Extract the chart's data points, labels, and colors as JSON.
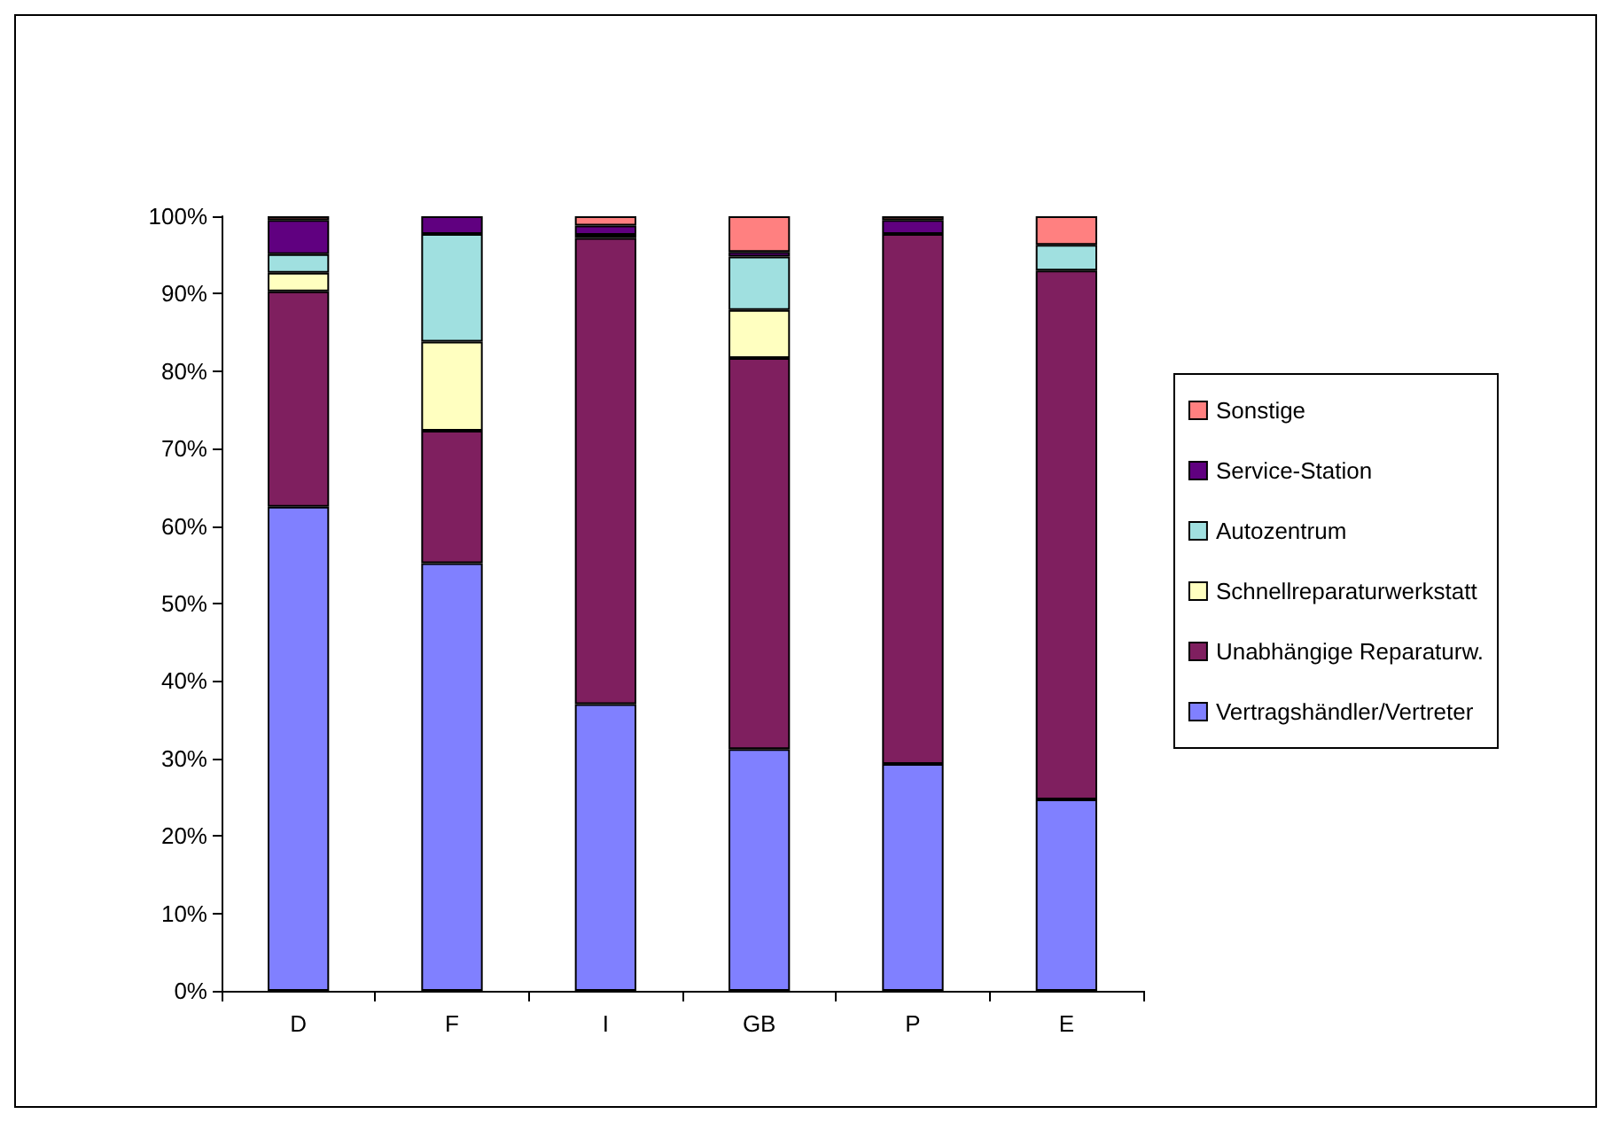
{
  "chart_data": {
    "type": "bar",
    "stacked": true,
    "categories": [
      "D",
      "F",
      "I",
      "GB",
      "P",
      "E"
    ],
    "series": [
      {
        "name": "Vertragshändler/Vertreter",
        "color": "#8080ff",
        "values": [
          62.5,
          55.2,
          37,
          31.2,
          29.3,
          24.7
        ]
      },
      {
        "name": "Unabhängige Reparaturw.",
        "color": "#7f1f5f",
        "values": [
          27.8,
          17.1,
          60.2,
          50.5,
          68.4,
          68.3
        ]
      },
      {
        "name": "Schnellreparaturwerkstatt",
        "color": "#ffffc0",
        "values": [
          2.4,
          11.5,
          0,
          6.2,
          0,
          0
        ]
      },
      {
        "name": "Autozentrum",
        "color": "#a0e0e0",
        "values": [
          2.4,
          13.9,
          0.4,
          6.9,
          0,
          3.3
        ]
      },
      {
        "name": "Service-Station",
        "color": "#600080",
        "values": [
          4.4,
          2.3,
          1.2,
          0.6,
          1.8,
          0
        ]
      },
      {
        "name": "Sonstige",
        "color": "#ff8080",
        "values": [
          0.5,
          0,
          1.2,
          4.6,
          0.5,
          3.7
        ]
      }
    ],
    "ylim": [
      0,
      100
    ],
    "yticks": [
      {
        "value": 0,
        "label": "0%"
      },
      {
        "value": 10,
        "label": "10%"
      },
      {
        "value": 20,
        "label": "20%"
      },
      {
        "value": 30,
        "label": "30%"
      },
      {
        "value": 40,
        "label": "40%"
      },
      {
        "value": 50,
        "label": "50%"
      },
      {
        "value": 60,
        "label": "60%"
      },
      {
        "value": 70,
        "label": "70%"
      },
      {
        "value": 80,
        "label": "80%"
      },
      {
        "value": 90,
        "label": "90%"
      },
      {
        "value": 100,
        "label": "100%"
      }
    ],
    "grid": false,
    "legend": "right"
  }
}
